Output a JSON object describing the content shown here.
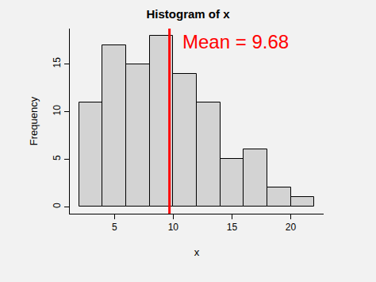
{
  "chart_data": {
    "type": "histogram",
    "title": "Histogram of x",
    "x_label": "x",
    "y_label": "Frequency",
    "bins": [
      2,
      4,
      6,
      8,
      10,
      12,
      14,
      16,
      18,
      20,
      22
    ],
    "values": [
      11,
      17,
      15,
      18,
      14,
      11,
      5,
      6,
      2,
      1
    ],
    "color": "#d3d3d3",
    "xlim": [
      1.2,
      22.8
    ],
    "xticks": [
      5,
      10,
      15,
      20
    ],
    "ylim": [
      -0.72,
      18.72
    ],
    "yticks": [
      0,
      5,
      10,
      15
    ],
    "grid": false,
    "mean_line": {
      "value": 9.68,
      "color": "#ff0000"
    },
    "annotations": [
      {
        "text": "Mean = 9.68",
        "color": "#ff0000"
      }
    ]
  }
}
